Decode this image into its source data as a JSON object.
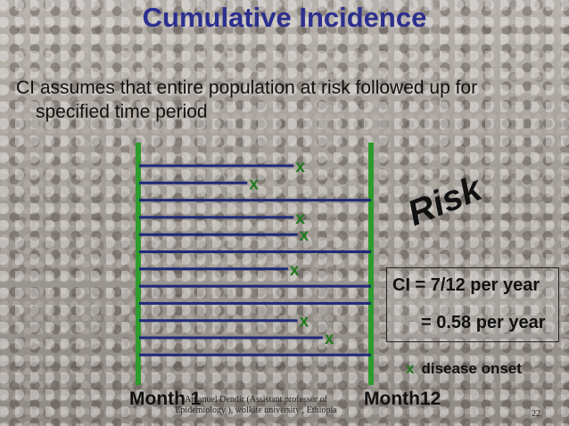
{
  "title": "Cumulative Incidence",
  "bullet": {
    "line1": "CI assumes that entire population at risk followed up for",
    "line2": "specified time period"
  },
  "risk_label": "Risk",
  "ci_box": {
    "line1": "CI = 7/12 per year",
    "line2": "= 0.58 per year"
  },
  "legend": {
    "marker": "x",
    "label": "disease onset"
  },
  "axis": {
    "start_label": "Month 1",
    "end_label": "Month12"
  },
  "footer": {
    "text": "Amanuel Dendir (Assistant professor of Epidemiology ), wolkite university , Ethiopia",
    "page_number": "22"
  },
  "colors": {
    "title": "#2c2f8e",
    "timeline": "#1f2a78",
    "boundary": "#2e9b2e",
    "onset_marker": "#1f7a1f"
  },
  "followup": {
    "total_months": 12,
    "subjects": [
      {
        "onset_month": 8.0
      },
      {
        "onset_month": 5.6
      },
      {
        "onset_month": null
      },
      {
        "onset_month": 8.0
      },
      {
        "onset_month": 8.2
      },
      {
        "onset_month": null
      },
      {
        "onset_month": 7.7
      },
      {
        "onset_month": null
      },
      {
        "onset_month": null
      },
      {
        "onset_month": 8.2
      },
      {
        "onset_month": 9.5
      },
      {
        "onset_month": null
      }
    ]
  }
}
